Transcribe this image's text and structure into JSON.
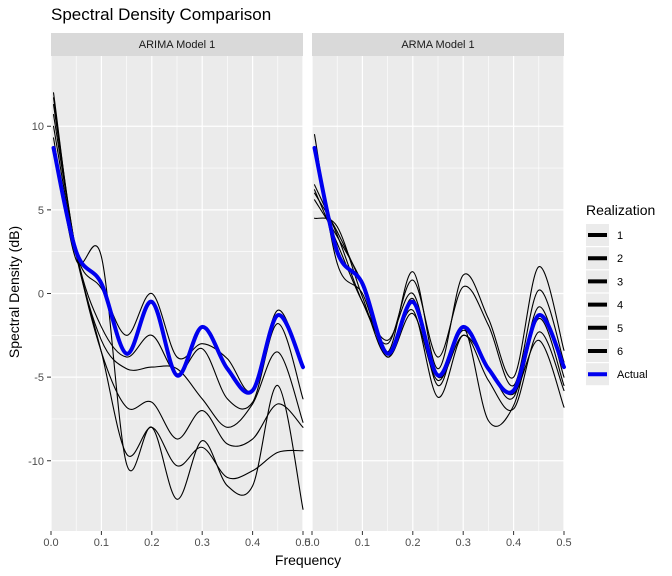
{
  "chart_data": {
    "type": "line",
    "title": "Spectral Density Comparison",
    "xlabel": "Frequency",
    "ylabel": "Spectral Density (dB)",
    "xlim": [
      0,
      0.5
    ],
    "ylim": [
      -14.2,
      14.2
    ],
    "x_ticks": [
      0.0,
      0.1,
      0.2,
      0.3,
      0.4,
      0.5
    ],
    "x_tick_labels": [
      "0.0",
      "0.1",
      "0.2",
      "0.3",
      "0.4",
      "0.5"
    ],
    "y_ticks": [
      10,
      5,
      0,
      -5,
      -10
    ],
    "y_tick_labels": [
      "10",
      "5",
      "0",
      "-5",
      "-10"
    ],
    "grid": true,
    "legend": {
      "title": "Realization",
      "position": "right",
      "entries": [
        "1",
        "2",
        "3",
        "4",
        "5",
        "6",
        "Actual"
      ]
    },
    "colors": {
      "realization": "#000000",
      "actual": "#0000ee",
      "panel_background": "#ebebeb",
      "strip_background": "#d9d9d9",
      "grid": "#ffffff"
    },
    "x": [
      0.005,
      0.05,
      0.1,
      0.15,
      0.2,
      0.25,
      0.3,
      0.35,
      0.4,
      0.45,
      0.5
    ],
    "panels": [
      {
        "strip": "ARIMA Model 1",
        "series": [
          {
            "name": "Actual",
            "values": [
              8.7,
              2.5,
              0.6,
              -3.6,
              -0.5,
              -4.9,
              -2.0,
              -4.5,
              -5.8,
              -1.3,
              -4.4
            ]
          },
          {
            "name": "1",
            "values": [
              12.0,
              2.5,
              0.3,
              -2.5,
              0.0,
              -3.8,
              -3.0,
              -3.9,
              -5.8,
              -1.0,
              -4.5
            ]
          },
          {
            "name": "2",
            "values": [
              11.7,
              2.5,
              -2.0,
              -3.8,
              -2.5,
              -4.8,
              -3.3,
              -6.3,
              -6.5,
              -1.8,
              -6.3
            ]
          },
          {
            "name": "3",
            "values": [
              11.3,
              2.5,
              -2.8,
              -4.5,
              -4.4,
              -4.5,
              -6.3,
              -8.0,
              -6.6,
              -3.5,
              -7.7
            ]
          },
          {
            "name": "4",
            "values": [
              10.7,
              2.5,
              -3.5,
              -6.8,
              -6.5,
              -8.7,
              -7.0,
              -9.0,
              -8.7,
              -6.6,
              -8.0
            ]
          },
          {
            "name": "5",
            "values": [
              10.0,
              2.3,
              -3.5,
              -9.6,
              -8.0,
              -10.3,
              -9.2,
              -11.0,
              -10.6,
              -9.5,
              -9.4
            ]
          },
          {
            "name": "6",
            "values": [
              9.3,
              2.0,
              2.2,
              -10.2,
              -8.0,
              -12.3,
              -8.8,
              -11.5,
              -11.5,
              -5.5,
              -12.9
            ]
          }
        ]
      },
      {
        "strip": "ARMA Model 1",
        "series": [
          {
            "name": "Actual",
            "values": [
              8.7,
              2.5,
              0.6,
              -3.6,
              -0.5,
              -4.9,
              -2.0,
              -4.5,
              -5.8,
              -1.3,
              -4.4
            ]
          },
          {
            "name": "1",
            "values": [
              9.5,
              1.8,
              0.0,
              -3.5,
              1.3,
              -4.5,
              1.1,
              -1.5,
              -5.0,
              1.6,
              -3.4
            ]
          },
          {
            "name": "2",
            "values": [
              6.5,
              3.5,
              -0.5,
              -3.0,
              0.8,
              -3.8,
              0.4,
              -1.9,
              -5.5,
              0.2,
              -4.1
            ]
          },
          {
            "name": "3",
            "values": [
              6.2,
              3.0,
              -0.5,
              -2.8,
              0.0,
              -5.0,
              -2.5,
              -4.4,
              -6.2,
              -0.8,
              -5.0
            ]
          },
          {
            "name": "4",
            "values": [
              6.0,
              3.7,
              0.4,
              -3.8,
              -0.3,
              -5.5,
              -2.0,
              -7.6,
              -6.7,
              -1.5,
              -5.5
            ]
          },
          {
            "name": "5",
            "values": [
              5.6,
              3.4,
              0.6,
              -3.5,
              -1.0,
              -6.2,
              -2.5,
              -5.2,
              -6.9,
              -2.3,
              -5.8
            ]
          },
          {
            "name": "6",
            "values": [
              4.5,
              4.0,
              -0.2,
              -3.8,
              -1.2,
              -5.2,
              -2.2,
              -4.6,
              -6.0,
              -2.8,
              -6.8
            ]
          }
        ]
      }
    ]
  }
}
